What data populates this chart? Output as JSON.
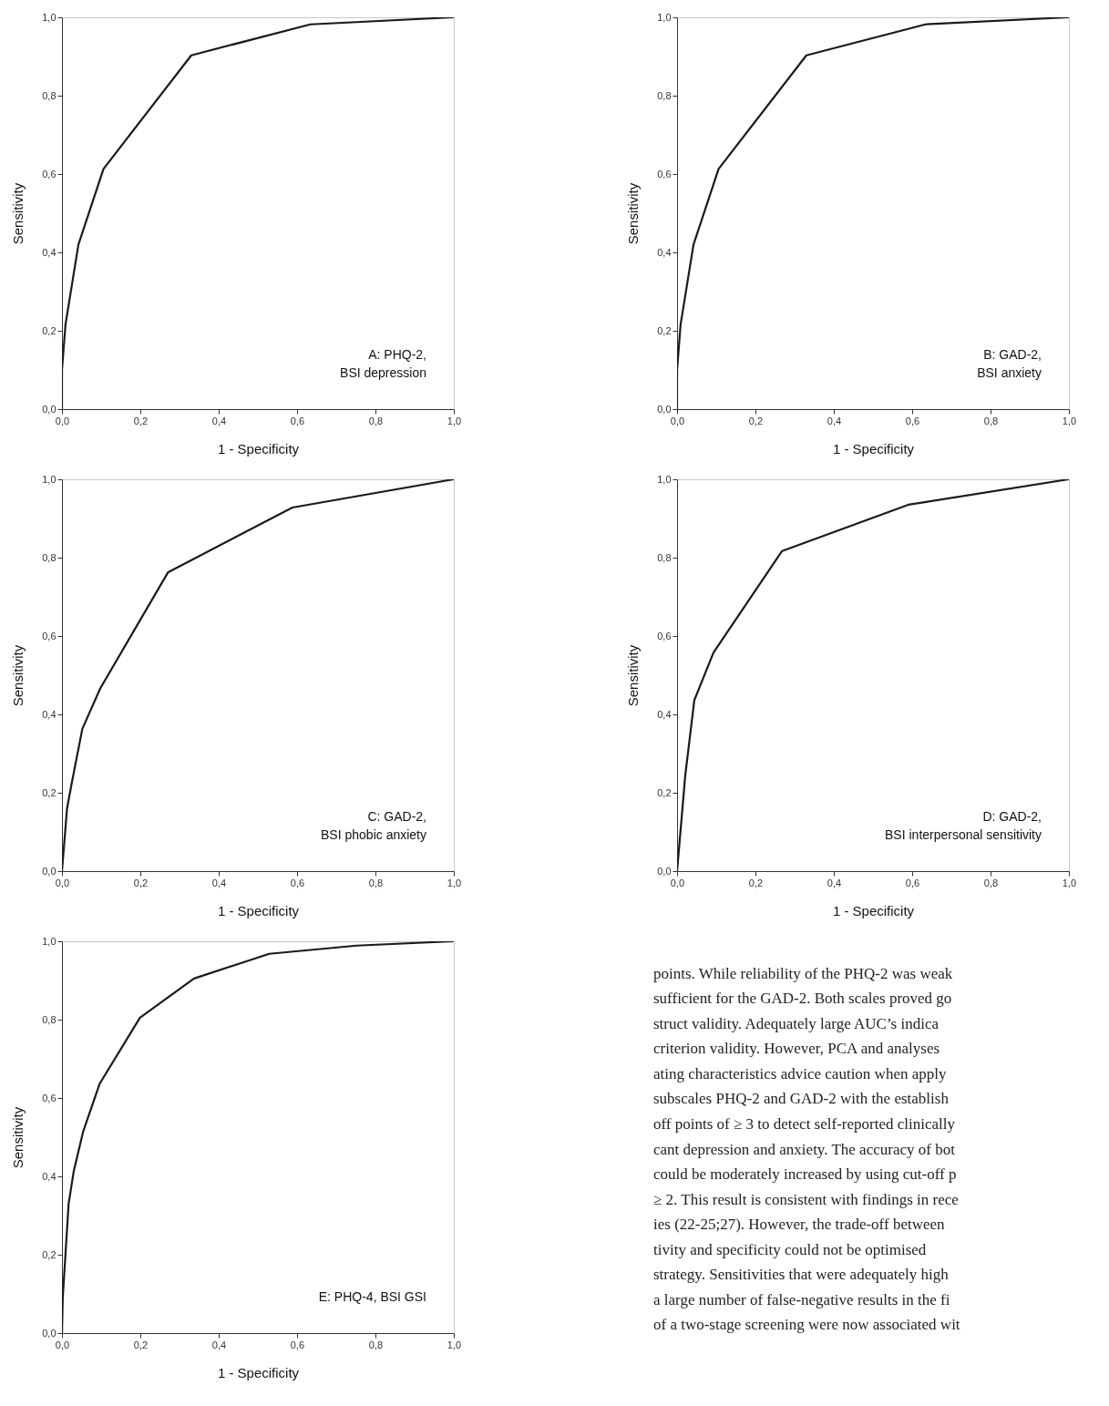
{
  "chart_data": [
    {
      "type": "line",
      "xlabel": "1 - Specificity",
      "ylabel": "Sensitivity",
      "annotations": [
        "A: PHQ-2,",
        "BSI depression"
      ],
      "series": [
        {
          "color": "#1a1a1a",
          "x": [
            0,
            0,
            0.009,
            0.042,
            0.106,
            0.33,
            0.634,
            1
          ],
          "values": [
            0,
            0.1,
            0.216,
            0.42,
            0.613,
            0.903,
            0.982,
            1
          ]
        }
      ],
      "xlim": [
        0,
        1
      ],
      "ylim": [
        0,
        1
      ],
      "xticks": [
        {
          "value": 0,
          "label": "0,0"
        },
        {
          "value": 0.2,
          "label": "0,2"
        },
        {
          "value": 0.4,
          "label": "0,4"
        },
        {
          "value": 0.6,
          "label": "0,6"
        },
        {
          "value": 0.8,
          "label": "0,8"
        },
        {
          "value": 1,
          "label": "1,0"
        }
      ],
      "yticks": [
        {
          "value": 0,
          "label": "0,0"
        },
        {
          "value": 0.2,
          "label": "0,2"
        },
        {
          "value": 0.4,
          "label": "0,4"
        },
        {
          "value": 0.6,
          "label": "0,6"
        },
        {
          "value": 0.8,
          "label": "0,8"
        },
        {
          "value": 1,
          "label": "1,0"
        }
      ],
      "grid": false,
      "marker": "none",
      "line_style": "solid"
    },
    {
      "type": "line",
      "xlabel": "1 - Specificity",
      "ylabel": "Sensitivity",
      "annotations": [
        "B: GAD-2,",
        "BSI anxiety"
      ],
      "series": [
        {
          "color": "#1a1a1a",
          "x": [
            0,
            0,
            0.009,
            0.042,
            0.106,
            0.33,
            0.634,
            1
          ],
          "values": [
            0,
            0.1,
            0.216,
            0.42,
            0.613,
            0.903,
            0.982,
            1
          ]
        }
      ],
      "xlim": [
        0,
        1
      ],
      "ylim": [
        0,
        1
      ],
      "xticks": [
        {
          "value": 0,
          "label": "0,0"
        },
        {
          "value": 0.2,
          "label": "0,2"
        },
        {
          "value": 0.4,
          "label": "0,4"
        },
        {
          "value": 0.6,
          "label": "0,6"
        },
        {
          "value": 0.8,
          "label": "0,8"
        },
        {
          "value": 1,
          "label": "1,0"
        }
      ],
      "yticks": [
        {
          "value": 0,
          "label": "0,0"
        },
        {
          "value": 0.2,
          "label": "0,2"
        },
        {
          "value": 0.4,
          "label": "0,4"
        },
        {
          "value": 0.6,
          "label": "0,6"
        },
        {
          "value": 0.8,
          "label": "0,8"
        },
        {
          "value": 1,
          "label": "1,0"
        }
      ],
      "grid": false,
      "marker": "none",
      "line_style": "solid"
    },
    {
      "type": "line",
      "xlabel": "1 - Specificity",
      "ylabel": "Sensitivity",
      "annotations": [
        "C: GAD-2,",
        "BSI phobic anxiety"
      ],
      "series": [
        {
          "color": "#1a1a1a",
          "x": [
            0,
            0.013,
            0.025,
            0.052,
            0.098,
            0.271,
            0.588,
            1
          ],
          "values": [
            0,
            0.16,
            0.225,
            0.363,
            0.467,
            0.763,
            0.928,
            1
          ]
        }
      ],
      "xlim": [
        0,
        1
      ],
      "ylim": [
        0,
        1
      ],
      "xticks": [
        {
          "value": 0,
          "label": "0,0"
        },
        {
          "value": 0.2,
          "label": "0,2"
        },
        {
          "value": 0.4,
          "label": "0,4"
        },
        {
          "value": 0.6,
          "label": "0,6"
        },
        {
          "value": 0.8,
          "label": "0,8"
        },
        {
          "value": 1,
          "label": "1,0"
        }
      ],
      "yticks": [
        {
          "value": 0,
          "label": "0,0"
        },
        {
          "value": 0.2,
          "label": "0,2"
        },
        {
          "value": 0.4,
          "label": "0,4"
        },
        {
          "value": 0.6,
          "label": "0,6"
        },
        {
          "value": 0.8,
          "label": "0,8"
        },
        {
          "value": 1,
          "label": "1,0"
        }
      ],
      "grid": false,
      "marker": "none",
      "line_style": "solid"
    },
    {
      "type": "line",
      "xlabel": "1 - Specificity",
      "ylabel": "Sensitivity",
      "annotations": [
        "D: GAD-2,",
        "BSI interpersonal sensitivity"
      ],
      "series": [
        {
          "color": "#1a1a1a",
          "x": [
            0,
            0.021,
            0.044,
            0.093,
            0.268,
            0.59,
            1
          ],
          "values": [
            0,
            0.245,
            0.436,
            0.558,
            0.817,
            0.935,
            1
          ]
        }
      ],
      "xlim": [
        0,
        1
      ],
      "ylim": [
        0,
        1
      ],
      "xticks": [
        {
          "value": 0,
          "label": "0,0"
        },
        {
          "value": 0.2,
          "label": "0,2"
        },
        {
          "value": 0.4,
          "label": "0,4"
        },
        {
          "value": 0.6,
          "label": "0,6"
        },
        {
          "value": 0.8,
          "label": "0,8"
        },
        {
          "value": 1,
          "label": "1,0"
        }
      ],
      "yticks": [
        {
          "value": 0,
          "label": "0,0"
        },
        {
          "value": 0.2,
          "label": "0,2"
        },
        {
          "value": 0.4,
          "label": "0,4"
        },
        {
          "value": 0.6,
          "label": "0,6"
        },
        {
          "value": 0.8,
          "label": "0,8"
        },
        {
          "value": 1,
          "label": "1,0"
        }
      ],
      "grid": false,
      "marker": "none",
      "line_style": "solid"
    },
    {
      "type": "line",
      "xlabel": "1 - Specificity",
      "ylabel": "Sensitivity",
      "annotations": [
        "E: PHQ-4, BSI GSI"
      ],
      "series": [
        {
          "color": "#1a1a1a",
          "x": [
            0,
            0.002,
            0.017,
            0.03,
            0.054,
            0.096,
            0.199,
            0.337,
            0.529,
            0.752,
            1
          ],
          "values": [
            0,
            0.09,
            0.33,
            0.413,
            0.514,
            0.636,
            0.805,
            0.905,
            0.968,
            0.989,
            1
          ]
        }
      ],
      "xlim": [
        0,
        1
      ],
      "ylim": [
        0,
        1
      ],
      "xticks": [
        {
          "value": 0,
          "label": "0,0"
        },
        {
          "value": 0.2,
          "label": "0,2"
        },
        {
          "value": 0.4,
          "label": "0,4"
        },
        {
          "value": 0.6,
          "label": "0,6"
        },
        {
          "value": 0.8,
          "label": "0,8"
        },
        {
          "value": 1,
          "label": "1,0"
        }
      ],
      "yticks": [
        {
          "value": 0,
          "label": "0,0"
        },
        {
          "value": 0.2,
          "label": "0,2"
        },
        {
          "value": 0.4,
          "label": "0,4"
        },
        {
          "value": 0.6,
          "label": "0,6"
        },
        {
          "value": 0.8,
          "label": "0,8"
        },
        {
          "value": 1,
          "label": "1,0"
        }
      ],
      "grid": false,
      "marker": "none",
      "line_style": "solid"
    },
    {
      "type": "other",
      "annotations": [
        "points. While reliability of the PHQ-2 was weak",
        "sufficient for the GAD-2. Both scales proved go",
        "struct validity. Adequately large AUC’s indica",
        "criterion validity. However, PCA and analyses",
        "ating characteristics advice caution when apply",
        "subscales PHQ-2 and GAD-2 with the establish",
        "off points of ≥ 3 to detect self-reported clinically",
        "cant depression and anxiety. The accuracy of bot",
        "could be moderately increased by using cut-off p",
        "≥ 2. This result is consistent with findings in rece",
        "ies (22-25;27). However, the trade-off between",
        "tivity and specificity could not be optimised",
        "strategy. Sensitivities that were adequately high",
        "a large number of false-negative results in the fi",
        "of a two-stage screening were now associated wit"
      ]
    }
  ]
}
